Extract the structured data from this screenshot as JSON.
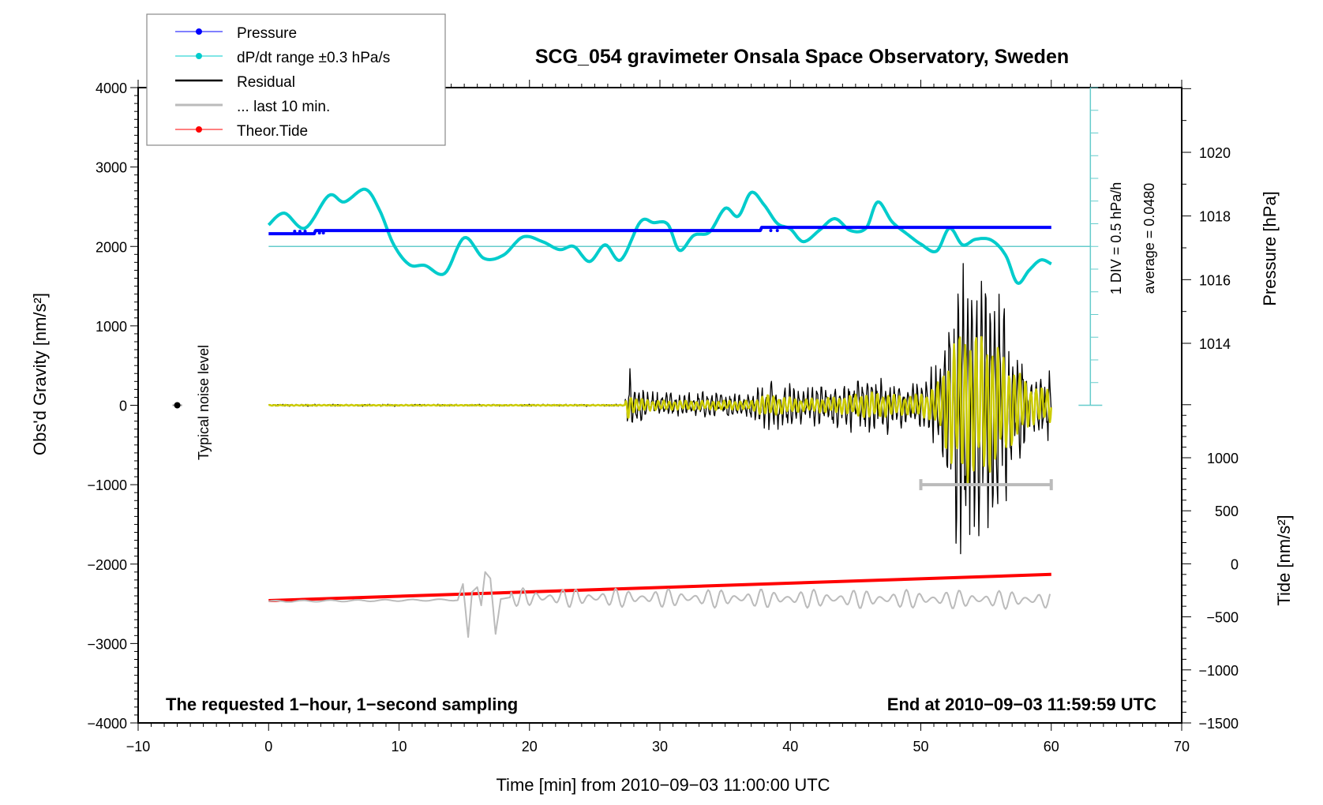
{
  "chart_data": {
    "type": "line",
    "title": "SCG_054 gravimeter Onsala Space Observatory, Sweden",
    "xlabel": "Time [min] from 2010−09−03 11:00:00 UTC",
    "ylabel_left": "Obs'd Gravity [nm/s²]",
    "ylabel_right_pressure": "Pressure [hPa]",
    "ylabel_right_tide": "Tide [nm/s²]",
    "xlim": [
      -10,
      70
    ],
    "ylim": [
      -4000,
      4000
    ],
    "x_ticks": [
      -10,
      0,
      10,
      20,
      30,
      40,
      50,
      60,
      70
    ],
    "x_tick_labels": [
      "−10",
      "0",
      "10",
      "20",
      "30",
      "40",
      "50",
      "60",
      "70"
    ],
    "y_ticks": [
      4000,
      3000,
      2000,
      1000,
      0,
      -1000,
      -2000,
      -3000,
      -4000
    ],
    "y_tick_labels": [
      "4000",
      "3000",
      "2000",
      "1000",
      "0",
      "−1000",
      "−2000",
      "−3000",
      "−4000"
    ],
    "pressure_axis": {
      "ticks": [
        1020,
        1018,
        1016,
        1014
      ],
      "tick_labels": [
        "1020",
        "1018",
        "1016",
        "1014"
      ]
    },
    "tide_axis": {
      "ticks": [
        1000,
        500,
        0,
        -500,
        -1000,
        -1500
      ],
      "tick_labels": [
        "1000",
        "500",
        "0",
        "−500",
        "−1000",
        "−1500"
      ]
    },
    "legend": [
      {
        "label": "Pressure",
        "color": "#0000ff",
        "marker": "dot"
      },
      {
        "label": "dP/dt range ±0.3 hPa/s",
        "color": "#00cccc",
        "marker": "dot"
      },
      {
        "label": "Residual",
        "color": "#000000",
        "marker": "line"
      },
      {
        "label": "... last 10 min.",
        "color": "#bbbbbb",
        "marker": "line"
      },
      {
        "label": "Theor.Tide",
        "color": "#ff0000",
        "marker": "dot"
      }
    ],
    "legend_position": "top-left",
    "annotations": {
      "bottom_left": "The requested 1−hour, 1−second sampling",
      "bottom_right": "End at 2010−09−03 11:59:59 UTC",
      "div_scale": "1 DIV = 0.5 hPa/h",
      "average": "average = 0.0480",
      "noise_label": "Typical noise level"
    },
    "series": [
      {
        "name": "Pressure",
        "color": "#0000ff",
        "x": [
          0,
          3.5,
          3.6,
          37.7,
          37.8,
          60
        ],
        "y": [
          2160,
          2160,
          2200,
          2200,
          2240,
          2240
        ]
      },
      {
        "name": "dP/dt",
        "color": "#00cccc",
        "x": [
          0,
          1.2,
          2.8,
          4.6,
          5.8,
          7.4,
          8.5,
          9.6,
          10.8,
          12,
          13.5,
          15,
          16.5,
          18,
          19.5,
          21,
          22.3,
          23.4,
          24.6,
          25.8,
          27,
          28.5,
          29.5,
          30.6,
          31.5,
          32.6,
          33.8,
          35,
          36,
          37,
          38,
          39,
          40,
          41,
          42.2,
          43.4,
          44.6,
          45.8,
          46.7,
          47.8,
          49,
          50,
          51.2,
          52.2,
          53.2,
          54.2,
          55.4,
          56.5,
          57.4,
          58.3,
          59.2,
          60
        ],
        "y": [
          2270,
          2420,
          2230,
          2640,
          2560,
          2720,
          2460,
          2020,
          1770,
          1760,
          1660,
          2110,
          1850,
          1890,
          2120,
          2060,
          1960,
          2000,
          1810,
          2020,
          1830,
          2310,
          2300,
          2280,
          1950,
          2140,
          2180,
          2480,
          2380,
          2680,
          2520,
          2290,
          2220,
          2060,
          2200,
          2350,
          2200,
          2230,
          2560,
          2310,
          2150,
          2030,
          1940,
          2230,
          2020,
          2090,
          2080,
          1890,
          1540,
          1700,
          1830,
          1780
        ]
      },
      {
        "name": "dP/dt reference",
        "color": "#66cccc",
        "x": [
          0,
          63
        ],
        "y": [
          2000,
          2000
        ]
      },
      {
        "name": "Residual",
        "color": "#000000",
        "envelope_x": [
          0,
          27.3,
          27.6,
          28.0,
          30,
          33,
          37,
          38,
          41,
          44,
          46,
          49,
          50.5,
          51.5,
          52.2,
          53,
          53.6,
          54.5,
          55.5,
          56.5,
          57.5,
          58.5,
          59.5,
          60
        ],
        "envelope_amp": [
          10,
          10,
          420,
          200,
          140,
          130,
          130,
          300,
          180,
          220,
          300,
          230,
          300,
          500,
          900,
          1500,
          1600,
          1400,
          1300,
          1100,
          650,
          400,
          350,
          380
        ]
      },
      {
        "name": "Filtered residual",
        "color": "#cccc00",
        "envelope_x": [
          0,
          27.3,
          27.6,
          28.0,
          30,
          37,
          38,
          41,
          44,
          46,
          49,
          50.5,
          51.5,
          52.2,
          53,
          53.6,
          54.5,
          55.5,
          56.5,
          57.5,
          58.5,
          59.5,
          60
        ],
        "envelope_amp": [
          5,
          5,
          200,
          90,
          60,
          60,
          140,
          80,
          110,
          170,
          120,
          170,
          320,
          750,
          920,
          1000,
          900,
          850,
          600,
          420,
          250,
          220,
          220
        ]
      },
      {
        "name": "Theor.Tide",
        "color": "#ff0000",
        "x": [
          0,
          60
        ],
        "y": [
          -2460,
          -2130
        ]
      },
      {
        "name": "last 10 min",
        "color": "#bbbbbb",
        "x": [
          0,
          14.5,
          14.9,
          15.3,
          15.6,
          16.0,
          16.3,
          16.6,
          17.0,
          17.4,
          17.8,
          18.5,
          60
        ],
        "y": [
          -2470,
          -2450,
          -2250,
          -2920,
          -2350,
          -2290,
          -2520,
          -2100,
          -2180,
          -2880,
          -2440,
          -2420,
          -2450
        ],
        "wiggle_amp_after": 120
      },
      {
        "name": "noise bar",
        "color": "#bbbbbb",
        "x": [
          50,
          60
        ],
        "y": [
          -1000,
          -1000
        ]
      },
      {
        "name": "Typical noise level",
        "color": "#000000",
        "x": [
          -7
        ],
        "y": [
          0
        ]
      }
    ]
  }
}
